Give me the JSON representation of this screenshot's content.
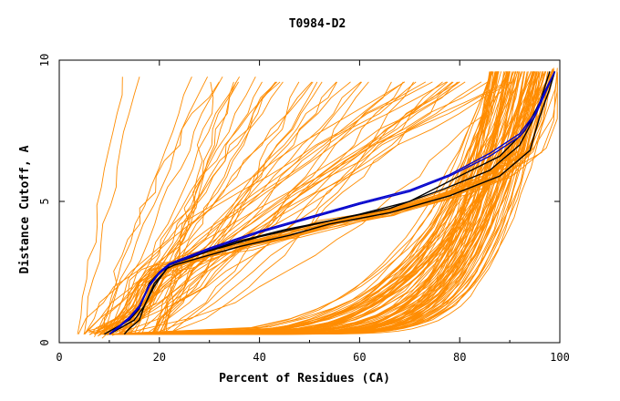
{
  "chart_data": {
    "type": "line",
    "title": "T0984-D2",
    "xlabel": "Percent of Residues (CA)",
    "ylabel": "Distance Cutoff, A",
    "xlim": [
      0,
      100
    ],
    "ylim": [
      0,
      10
    ],
    "x_ticks": [
      0,
      20,
      40,
      60,
      80,
      100
    ],
    "y_ticks": [
      0,
      5,
      10
    ],
    "grid": false,
    "colors": {
      "orange": "#ff8c00",
      "black": "#000000",
      "blue": "#0000cc"
    },
    "highlight_series": [
      {
        "name": "black-1",
        "color": "#000000",
        "points": [
          [
            9,
            0.3
          ],
          [
            11,
            0.5
          ],
          [
            14,
            0.8
          ],
          [
            16,
            1.2
          ],
          [
            18,
            2.1
          ],
          [
            20,
            2.5
          ],
          [
            23,
            2.75
          ],
          [
            28,
            3.0
          ],
          [
            36,
            3.4
          ],
          [
            46,
            3.8
          ],
          [
            54,
            4.2
          ],
          [
            66,
            4.6
          ],
          [
            78,
            5.2
          ],
          [
            88,
            5.9
          ],
          [
            94,
            6.8
          ],
          [
            96,
            8.0
          ],
          [
            98,
            9.0
          ],
          [
            99,
            9.6
          ]
        ]
      },
      {
        "name": "black-2",
        "color": "#000000",
        "points": [
          [
            10,
            0.3
          ],
          [
            12,
            0.5
          ],
          [
            15,
            0.8
          ],
          [
            17,
            1.3
          ],
          [
            19,
            2.1
          ],
          [
            21,
            2.5
          ],
          [
            22,
            2.75
          ],
          [
            27,
            3.1
          ],
          [
            35,
            3.55
          ],
          [
            45,
            4.0
          ],
          [
            55,
            4.35
          ],
          [
            66,
            4.75
          ],
          [
            77,
            5.45
          ],
          [
            86,
            6.1
          ],
          [
            92,
            7.0
          ],
          [
            95,
            8.0
          ],
          [
            97,
            8.8
          ],
          [
            99,
            9.6
          ]
        ]
      },
      {
        "name": "black-3",
        "color": "#000000",
        "points": [
          [
            13,
            0.3
          ],
          [
            14,
            0.5
          ],
          [
            16,
            0.8
          ],
          [
            17,
            1.3
          ],
          [
            19,
            2.0
          ],
          [
            21,
            2.5
          ],
          [
            22,
            2.75
          ],
          [
            30,
            3.25
          ],
          [
            40,
            3.75
          ],
          [
            50,
            4.15
          ],
          [
            60,
            4.55
          ],
          [
            70,
            5.0
          ],
          [
            80,
            5.9
          ],
          [
            88,
            6.6
          ],
          [
            93,
            7.5
          ],
          [
            96,
            8.5
          ],
          [
            98,
            9.6
          ]
        ]
      },
      {
        "name": "blue-1",
        "color": "#0000cc",
        "points": [
          [
            10,
            0.3
          ],
          [
            12,
            0.55
          ],
          [
            14,
            0.85
          ],
          [
            16,
            1.25
          ],
          [
            18,
            2.0
          ],
          [
            20,
            2.45
          ],
          [
            22,
            2.75
          ],
          [
            30,
            3.3
          ],
          [
            40,
            3.9
          ],
          [
            50,
            4.4
          ],
          [
            60,
            4.9
          ],
          [
            70,
            5.35
          ],
          [
            78,
            5.9
          ],
          [
            86,
            6.6
          ],
          [
            92,
            7.3
          ],
          [
            95,
            8.0
          ],
          [
            97,
            8.8
          ],
          [
            99,
            9.6
          ]
        ]
      },
      {
        "name": "blue-2",
        "color": "#0000cc",
        "points": [
          [
            10,
            0.3
          ],
          [
            12,
            0.6
          ],
          [
            14,
            0.9
          ],
          [
            16,
            1.3
          ],
          [
            18,
            2.05
          ],
          [
            20,
            2.5
          ],
          [
            22,
            2.8
          ],
          [
            30,
            3.35
          ],
          [
            40,
            3.95
          ],
          [
            50,
            4.45
          ],
          [
            60,
            4.95
          ],
          [
            70,
            5.4
          ],
          [
            78,
            5.95
          ],
          [
            86,
            6.7
          ],
          [
            92,
            7.4
          ],
          [
            95,
            8.1
          ],
          [
            97,
            8.9
          ],
          [
            99,
            9.6
          ]
        ]
      }
    ],
    "background_series_count": 160,
    "background_series_note": "many orange model curves (rendered procedurally)"
  }
}
